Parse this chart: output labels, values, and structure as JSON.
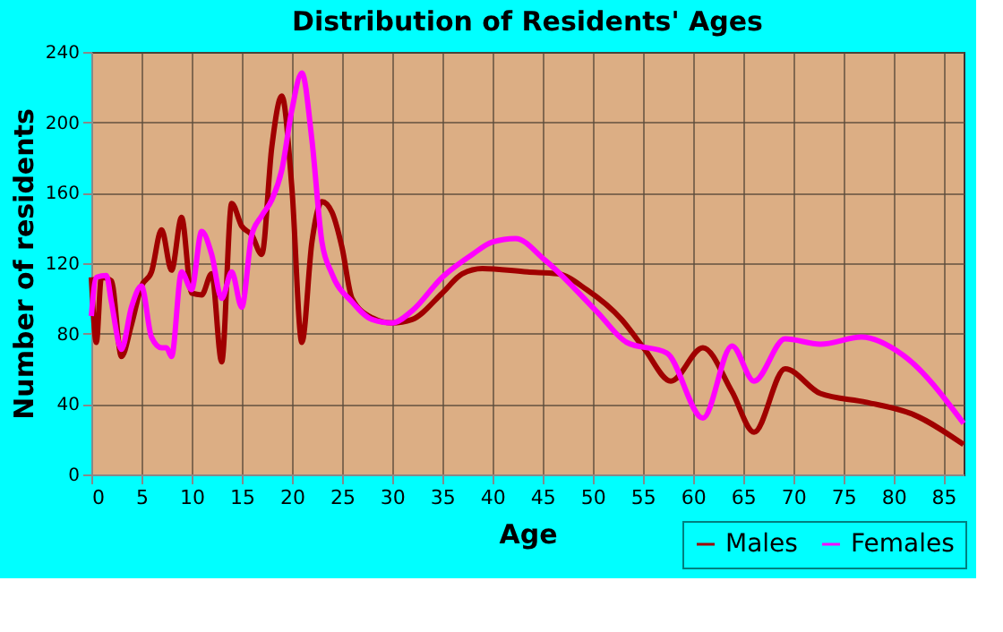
{
  "chart_data": {
    "type": "line",
    "title": "Distribution of Residents' Ages",
    "xlabel": "Age",
    "ylabel": "Number of residents",
    "xlim": [
      0,
      87
    ],
    "xticks": [
      0,
      5,
      10,
      15,
      20,
      25,
      30,
      35,
      40,
      45,
      50,
      55,
      60,
      65,
      70,
      75,
      80,
      85
    ],
    "ylim": [
      0,
      240
    ],
    "yticks": [
      0,
      40,
      80,
      120,
      160,
      200,
      240
    ],
    "grid": true,
    "legend": "bottom right",
    "line_style": "solid",
    "marker": "none",
    "series": [
      {
        "name": "Males",
        "color": "#a00000",
        "x": [
          0,
          0.5,
          1,
          2,
          3,
          4,
          5,
          6,
          7,
          8,
          9,
          10,
          11,
          12,
          13,
          14,
          15,
          16,
          17,
          18,
          19,
          20,
          21,
          22,
          23,
          24,
          25,
          26,
          28,
          30,
          32,
          35,
          37,
          39,
          43.5,
          46.5,
          49.4,
          52.9,
          55.2,
          57.8,
          61,
          63.9,
          66.1,
          69.2,
          72.7,
          77.3,
          82,
          87
        ],
        "values": [
          112,
          75,
          112,
          110,
          67,
          85,
          107,
          115,
          139,
          116,
          146,
          103,
          102,
          114,
          64,
          154,
          141,
          136,
          125,
          186,
          215,
          163,
          75,
          132,
          155,
          149,
          129,
          100,
          89,
          86,
          88,
          103,
          114,
          117,
          115,
          114,
          105,
          88,
          71,
          53,
          72,
          47,
          24,
          60,
          46,
          41,
          34,
          17
        ]
      },
      {
        "name": "Females",
        "color": "#ff00ff",
        "x": [
          0,
          0.5,
          1.5,
          2,
          3,
          4,
          5,
          6,
          7,
          7.5,
          8,
          9,
          10,
          11,
          12,
          13,
          14,
          15,
          16,
          17,
          18,
          19,
          20,
          21,
          22,
          23,
          24,
          26,
          28,
          30,
          32,
          35,
          38,
          40,
          42.3,
          45.2,
          50.5,
          53.4,
          57.4,
          61,
          63.9,
          66.1,
          69.2,
          72.7,
          76.8,
          80.9,
          87
        ],
        "values": [
          90,
          112,
          113,
          98,
          71,
          95,
          107,
          78,
          72,
          72,
          67,
          115,
          105,
          138,
          125,
          100,
          115,
          95,
          136,
          147,
          156,
          173,
          207,
          228,
          190,
          132,
          114,
          98,
          88,
          86,
          93,
          112,
          125,
          132,
          134,
          122,
          92,
          75,
          69,
          32,
          73,
          53,
          77,
          74,
          78,
          68,
          29
        ]
      }
    ]
  }
}
